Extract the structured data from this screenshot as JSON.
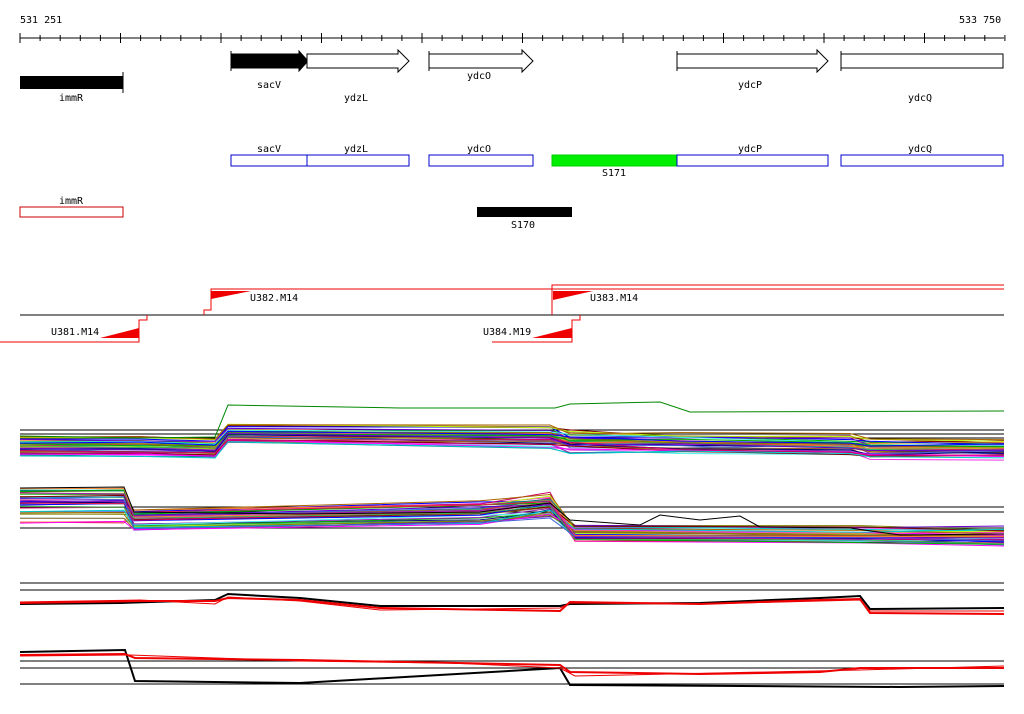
{
  "coords": {
    "start": "531 251",
    "end": "533 750"
  },
  "genes": [
    {
      "name": "immR"
    },
    {
      "name": "sacV"
    },
    {
      "name": "ydzL"
    },
    {
      "name": "ydcO"
    },
    {
      "name": "ydcP"
    },
    {
      "name": "ydcQ"
    }
  ],
  "annot_genes": [
    {
      "name": "sacV"
    },
    {
      "name": "ydzL"
    },
    {
      "name": "ydcO"
    },
    {
      "name": "ydcP"
    },
    {
      "name": "ydcQ"
    },
    {
      "name": "immR"
    }
  ],
  "segments": [
    {
      "name": "S171"
    },
    {
      "name": "S170"
    }
  ],
  "transcripts": [
    {
      "name": "U382.M14"
    },
    {
      "name": "U383.M14"
    },
    {
      "name": "U381.M14"
    },
    {
      "name": "U384.M19"
    }
  ],
  "colors": {
    "gene_fill": "#000000",
    "annot_blue": "#0000cc",
    "annot_red": "#cc0000",
    "segment_green": "#00ee00",
    "transcript_red": "#ee0000",
    "trace_green": "#008800"
  }
}
